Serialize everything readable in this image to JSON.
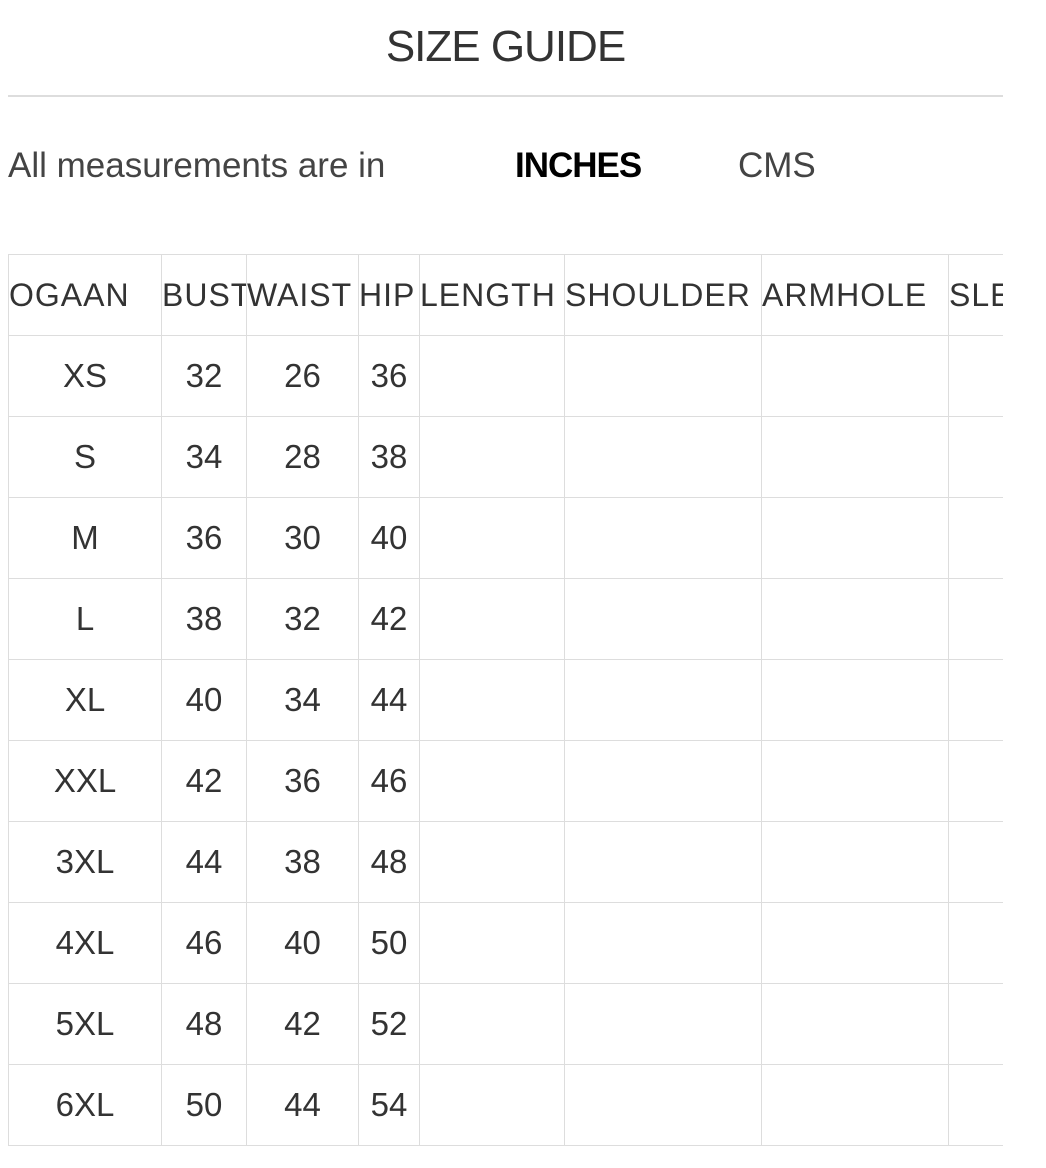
{
  "header": {
    "title": "SIZE GUIDE"
  },
  "units": {
    "label": "All measurements are in",
    "options": [
      "INCHES",
      "CMS"
    ],
    "active": 0
  },
  "table": {
    "columns": [
      "OGAAN",
      "BUST",
      "WAIST",
      "HIP",
      "LENGTH",
      "SHOULDER",
      "ARMHOLE",
      "SLE"
    ],
    "rows": [
      [
        "XS",
        32,
        26,
        36
      ],
      [
        "S",
        34,
        28,
        38
      ],
      [
        "M",
        36,
        30,
        40
      ],
      [
        "L",
        38,
        32,
        42
      ],
      [
        "XL",
        40,
        34,
        44
      ],
      [
        "XXL",
        42,
        36,
        46
      ],
      [
        "3XL",
        44,
        38,
        48
      ],
      [
        "4XL",
        46,
        40,
        50
      ],
      [
        "5XL",
        48,
        42,
        52
      ],
      [
        "6XL",
        50,
        44,
        54
      ]
    ]
  }
}
